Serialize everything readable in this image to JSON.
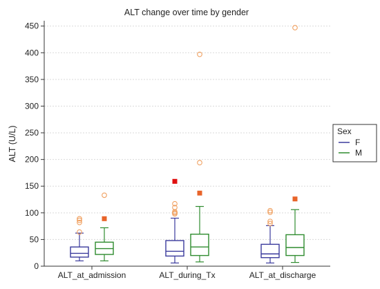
{
  "chart_data": {
    "type": "box",
    "title": "ALT change over time by gender",
    "xlabel": "",
    "ylabel": "ALT (U/L)",
    "ylim": [
      0,
      460
    ],
    "yticks": [
      0,
      50,
      100,
      150,
      200,
      250,
      300,
      350,
      400,
      450
    ],
    "grid": true,
    "categories": [
      "ALT_at_admission",
      "ALT_during_Tx",
      "ALT_at_discharge"
    ],
    "legend": {
      "title": "Sex",
      "placement": "right"
    },
    "series": [
      {
        "name": "F",
        "color": "#3a3a9c",
        "boxes": [
          {
            "category": "ALT_at_admission",
            "min": 10,
            "q1": 17,
            "median": 24,
            "q3": 36,
            "max": 62,
            "outliers": [
              64,
              82,
              86,
              89
            ],
            "far_outliers": []
          },
          {
            "category": "ALT_during_Tx",
            "min": 6,
            "q1": 19,
            "median": 28,
            "q3": 48,
            "max": 90,
            "outliers": [
              98,
              100,
              102,
              110,
              117
            ],
            "far_outliers": [
              159
            ]
          },
          {
            "category": "ALT_at_discharge",
            "min": 6,
            "q1": 16,
            "median": 23,
            "q3": 41,
            "max": 76,
            "outliers": [
              80,
              84,
              101,
              104
            ],
            "far_outliers": []
          }
        ]
      },
      {
        "name": "M",
        "color": "#2e8b2e",
        "boxes": [
          {
            "category": "ALT_at_admission",
            "min": 10,
            "q1": 22,
            "median": 33,
            "q3": 45,
            "max": 72,
            "outliers": [
              133
            ],
            "far_outliers": [
              89
            ]
          },
          {
            "category": "ALT_during_Tx",
            "min": 8,
            "q1": 20,
            "median": 36,
            "q3": 60,
            "max": 112,
            "outliers": [
              194,
              397
            ],
            "far_outliers": [
              137
            ]
          },
          {
            "category": "ALT_at_discharge",
            "min": 7,
            "q1": 20,
            "median": 35,
            "q3": 59,
            "max": 106,
            "outliers": [
              447
            ],
            "far_outliers": [
              126
            ]
          }
        ]
      }
    ],
    "outlier_color": "#f0a060",
    "far_outlier_color": "#e8642a",
    "extreme_highlight": {
      "series": "F",
      "category": "ALT_during_Tx",
      "value": 159,
      "color": "#e01010"
    }
  }
}
